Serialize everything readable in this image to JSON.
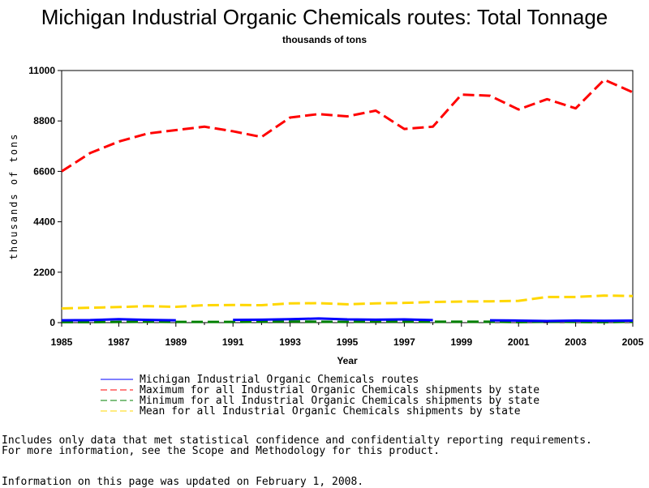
{
  "chart_data": {
    "type": "line",
    "title": "Michigan Industrial Organic Chemicals routes: Total Tonnage",
    "subtitle": "thousands of tons",
    "xlabel": "Year",
    "ylabel": "thousands of tons",
    "xlim": [
      1985,
      2005
    ],
    "ylim": [
      0,
      11000
    ],
    "x_ticks": [
      "1985",
      "1987",
      "1989",
      "1991",
      "1993",
      "1995",
      "1997",
      "1999",
      "2001",
      "2003",
      "2005"
    ],
    "y_ticks": [
      "0",
      "2200",
      "4400",
      "6600",
      "8800",
      "11000"
    ],
    "legend_position": "bottom",
    "grid": false,
    "series": [
      {
        "name": "Michigan Industrial Organic Chemicals routes",
        "color": "#0000ff",
        "dash": "solid",
        "segments": [
          {
            "x": [
              1985,
              1986,
              1987,
              1988,
              1989
            ],
            "y": [
              100,
              110,
              150,
              120,
              100
            ]
          },
          {
            "x": [
              1991,
              1992,
              1993,
              1994,
              1995,
              1996,
              1997,
              1998
            ],
            "y": [
              120,
              130,
              150,
              180,
              140,
              130,
              140,
              110
            ]
          },
          {
            "x": [
              2000,
              2001,
              2002,
              2003,
              2004,
              2005
            ],
            "y": [
              100,
              90,
              70,
              90,
              80,
              90
            ]
          }
        ]
      },
      {
        "name": "Maximum for all Industrial Organic Chemicals shipments by state",
        "color": "#ff0000",
        "dash": "dashed",
        "segments": [
          {
            "x": [
              1985,
              1986,
              1987,
              1988,
              1989,
              1990,
              1991,
              1992,
              1993,
              1994,
              1995,
              1996,
              1997,
              1998,
              1999,
              2000,
              2001,
              2002,
              2003,
              2004,
              2005
            ],
            "y": [
              6600,
              7400,
              7900,
              8250,
              8400,
              8550,
              8350,
              8100,
              8950,
              9100,
              9000,
              9250,
              8450,
              8550,
              9950,
              9900,
              9300,
              9750,
              9350,
              10600,
              10050
            ]
          }
        ]
      },
      {
        "name": "Minimum for all Industrial Organic Chemicals shipments by state",
        "color": "#008000",
        "dash": "dashed",
        "segments": [
          {
            "x": [
              1985,
              1986,
              1987,
              1988,
              1989,
              1990,
              1991,
              1992,
              1993,
              1994,
              1995,
              1996,
              1997,
              1998,
              1999,
              2000,
              2001,
              2002,
              2003,
              2004,
              2005
            ],
            "y": [
              20,
              20,
              30,
              40,
              30,
              30,
              30,
              40,
              50,
              40,
              30,
              50,
              40,
              40,
              40,
              40,
              20,
              40,
              30,
              20,
              40
            ]
          }
        ]
      },
      {
        "name": "Mean for all Industrial Organic Chemicals shipments by state",
        "color": "#ffd700",
        "dash": "dashed",
        "segments": [
          {
            "x": [
              1985,
              1986,
              1987,
              1988,
              1989,
              1990,
              1991,
              1992,
              1993,
              1994,
              1995,
              1996,
              1997,
              1998,
              1999,
              2000,
              2001,
              2002,
              2003,
              2004,
              2005
            ],
            "y": [
              620,
              650,
              680,
              720,
              690,
              760,
              770,
              760,
              840,
              850,
              800,
              840,
              860,
              900,
              920,
              930,
              950,
              1120,
              1120,
              1180,
              1160
            ]
          }
        ]
      }
    ]
  },
  "notes": {
    "line1": "Includes only data that met statistical confidence and confidentialty reporting requirements.",
    "line2": "For more information, see the Scope and Methodology for this product.",
    "line3": "Information on this page was updated on February 1, 2008."
  }
}
